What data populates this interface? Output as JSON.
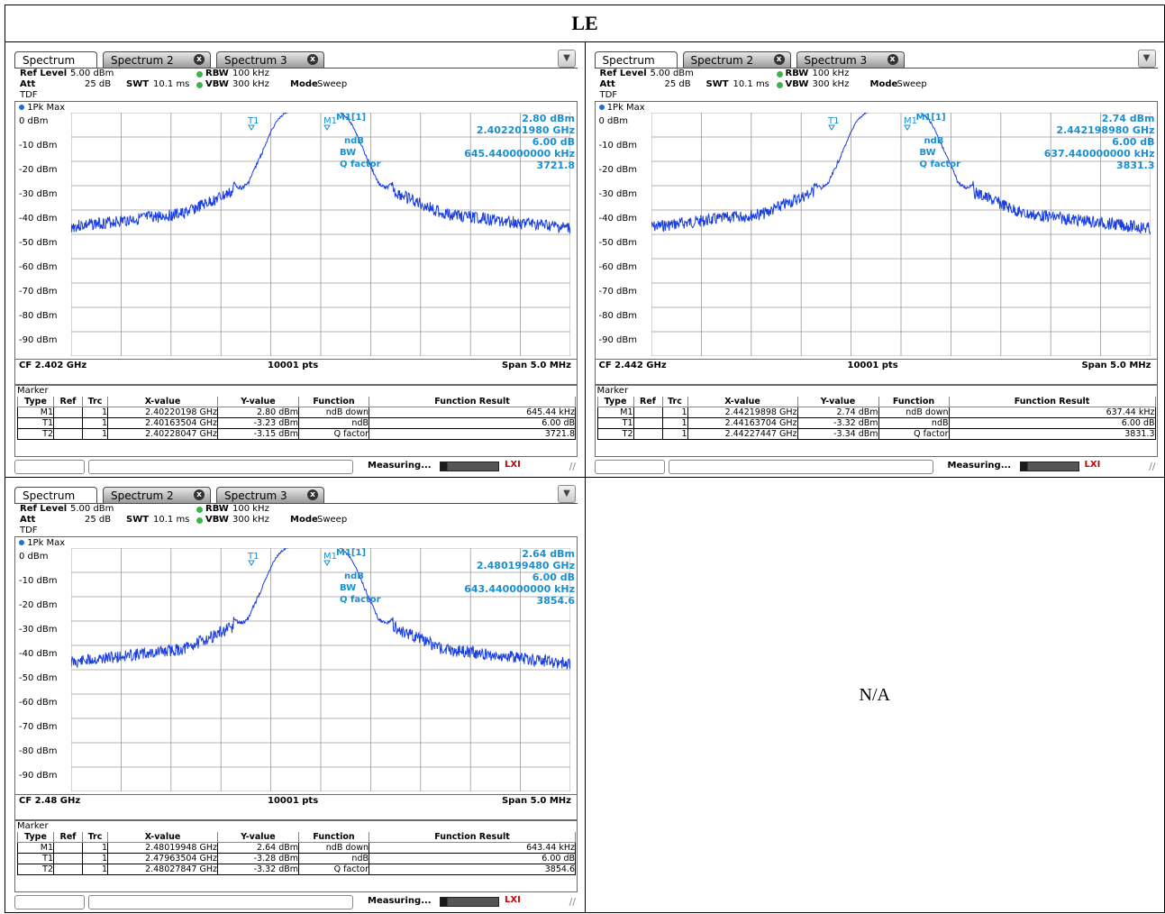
{
  "title": "LE",
  "na_text": "N/A",
  "instruments": [
    {
      "tabs": [
        "Spectrum",
        "Spectrum 2",
        "Spectrum 3"
      ],
      "ref_level_label": "Ref Level",
      "ref_level": "5.00 dBm",
      "att_label": "Att",
      "att": "25 dB",
      "swt_label": "SWT",
      "swt": "10.1 ms",
      "rbw_label": "RBW",
      "rbw": "100 kHz",
      "vbw_label": "VBW",
      "vbw": "300 kHz",
      "mode_label": "Mode",
      "mode": "Sweep",
      "tdf": "TDF",
      "trace": "1Pk Max",
      "y_labels": [
        "0 dBm",
        "-10 dBm",
        "-20 dBm",
        "-30 dBm",
        "-40 dBm",
        "-50 dBm",
        "-60 dBm",
        "-70 dBm",
        "-80 dBm",
        "-90 dBm"
      ],
      "marker_result": {
        "name": "M1[1]",
        "level": "2.80 dBm",
        "freq": "2.402201980 GHz",
        "ndb": "6.00 dB",
        "bw": "645.440000000 kHz",
        "q": "3721.8"
      },
      "marker_labels": [
        "ndB",
        "BW",
        "Q factor"
      ],
      "cf": "CF 2.402 GHz",
      "pts": "10001 pts",
      "span": "Span 5.0 MHz",
      "marker_title": "Marker",
      "headers": [
        "Type",
        "Ref",
        "Trc",
        "X-value",
        "Y-value",
        "Function",
        "Function Result"
      ],
      "rows": [
        [
          "M1",
          "",
          "1",
          "2.40220198 GHz",
          "2.80 dBm",
          "ndB down",
          "645.44 kHz"
        ],
        [
          "T1",
          "",
          "1",
          "2.40163504 GHz",
          "-3.23 dBm",
          "ndB",
          "6.00 dB"
        ],
        [
          "T2",
          "",
          "1",
          "2.40228047 GHz",
          "-3.15 dBm",
          "Q factor",
          "3721.8"
        ]
      ],
      "status": "Measuring...",
      "seed": 3
    },
    {
      "tabs": [
        "Spectrum",
        "Spectrum 2",
        "Spectrum 3"
      ],
      "ref_level_label": "Ref Level",
      "ref_level": "5.00 dBm",
      "att_label": "Att",
      "att": "25 dB",
      "swt_label": "SWT",
      "swt": "10.1 ms",
      "rbw_label": "RBW",
      "rbw": "100 kHz",
      "vbw_label": "VBW",
      "vbw": "300 kHz",
      "mode_label": "Mode",
      "mode": "Sweep",
      "tdf": "TDF",
      "trace": "1Pk Max",
      "y_labels": [
        "0 dBm",
        "-10 dBm",
        "-20 dBm",
        "-30 dBm",
        "-40 dBm",
        "-50 dBm",
        "-60 dBm",
        "-70 dBm",
        "-80 dBm",
        "-90 dBm"
      ],
      "marker_result": {
        "name": "M1[1]",
        "level": "2.74 dBm",
        "freq": "2.442198980 GHz",
        "ndb": "6.00 dB",
        "bw": "637.440000000 kHz",
        "q": "3831.3"
      },
      "marker_labels": [
        "ndB",
        "BW",
        "Q factor"
      ],
      "cf": "CF 2.442 GHz",
      "pts": "10001 pts",
      "span": "Span 5.0 MHz",
      "marker_title": "Marker",
      "headers": [
        "Type",
        "Ref",
        "Trc",
        "X-value",
        "Y-value",
        "Function",
        "Function Result"
      ],
      "rows": [
        [
          "M1",
          "",
          "1",
          "2.44219898 GHz",
          "2.74 dBm",
          "ndB down",
          "637.44 kHz"
        ],
        [
          "T1",
          "",
          "1",
          "2.44163704 GHz",
          "-3.32 dBm",
          "ndB",
          "6.00 dB"
        ],
        [
          "T2",
          "",
          "1",
          "2.44227447 GHz",
          "-3.34 dBm",
          "Q factor",
          "3831.3"
        ]
      ],
      "status": "Measuring...",
      "seed": 7
    },
    {
      "tabs": [
        "Spectrum",
        "Spectrum 2",
        "Spectrum 3"
      ],
      "ref_level_label": "Ref Level",
      "ref_level": "5.00 dBm",
      "att_label": "Att",
      "att": "25 dB",
      "swt_label": "SWT",
      "swt": "10.1 ms",
      "rbw_label": "RBW",
      "rbw": "100 kHz",
      "vbw_label": "VBW",
      "vbw": "300 kHz",
      "mode_label": "Mode",
      "mode": "Sweep",
      "tdf": "TDF",
      "trace": "1Pk Max",
      "y_labels": [
        "0 dBm",
        "-10 dBm",
        "-20 dBm",
        "-30 dBm",
        "-40 dBm",
        "-50 dBm",
        "-60 dBm",
        "-70 dBm",
        "-80 dBm",
        "-90 dBm"
      ],
      "marker_result": {
        "name": "M1[1]",
        "level": "2.64 dBm",
        "freq": "2.480199480 GHz",
        "ndb": "6.00 dB",
        "bw": "643.440000000 kHz",
        "q": "3854.6"
      },
      "marker_labels": [
        "ndB",
        "BW",
        "Q factor"
      ],
      "cf": "CF 2.48 GHz",
      "pts": "10001 pts",
      "span": "Span 5.0 MHz",
      "marker_title": "Marker",
      "headers": [
        "Type",
        "Ref",
        "Trc",
        "X-value",
        "Y-value",
        "Function",
        "Function Result"
      ],
      "rows": [
        [
          "M1",
          "",
          "1",
          "2.48019948 GHz",
          "2.64 dBm",
          "ndB down",
          "643.44 kHz"
        ],
        [
          "T1",
          "",
          "1",
          "2.47963504 GHz",
          "-3.28 dBm",
          "ndB",
          "6.00 dB"
        ],
        [
          "T2",
          "",
          "1",
          "2.48027847 GHz",
          "-3.32 dBm",
          "Q factor",
          "3854.6"
        ]
      ],
      "status": "Measuring...",
      "seed": 11
    }
  ],
  "colors": {
    "trace": "#1a3fe0",
    "marker": "#1a8fd0",
    "grid": "#9a9a9a"
  }
}
